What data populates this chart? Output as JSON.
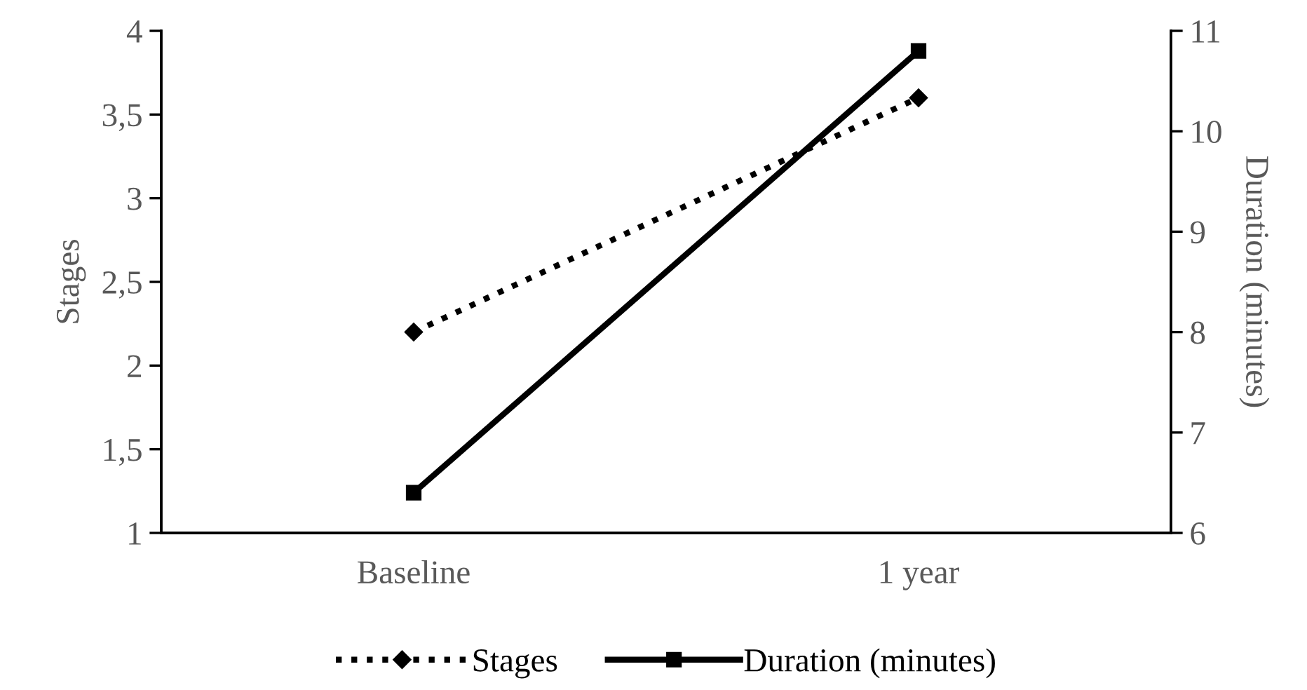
{
  "chart_data": {
    "type": "line",
    "categories": [
      "Baseline",
      "1 year"
    ],
    "ylabel": "Stages",
    "y2label": "Duration (minutes)",
    "ylim": [
      1,
      4
    ],
    "yticks": [
      1,
      {
        "value": 1.5,
        "label": "1,5"
      },
      2,
      {
        "value": 2.5,
        "label": "2,5"
      },
      3,
      {
        "value": 3.5,
        "label": "3,5"
      },
      4
    ],
    "y2lim": [
      6,
      11
    ],
    "y2ticks": [
      6,
      7,
      8,
      9,
      10,
      11
    ],
    "series": [
      {
        "name": "Stages",
        "color": "#000000",
        "values": [
          2.2,
          3.6
        ],
        "line_style": "dotted",
        "marker": "diamond"
      },
      {
        "name": "Duration (minutes)",
        "color": "#000000",
        "values": [
          6.4,
          10.8
        ],
        "axis": "y2",
        "line_style": "solid",
        "marker": "square"
      }
    ],
    "grid": false,
    "legend": "bottom"
  }
}
